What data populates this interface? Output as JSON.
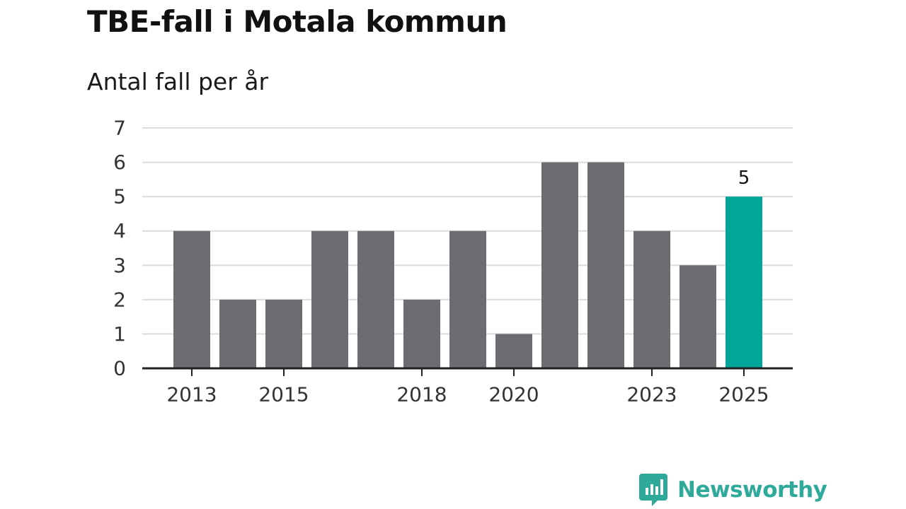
{
  "title": "TBE-fall i Motala kommun",
  "subtitle": "Antal fall per år",
  "brand": {
    "name": "Newsworthy",
    "icon": "newsworthy-logo-icon"
  },
  "colors": {
    "bar": "#6d6c72",
    "highlight": "#00a699",
    "grid": "#dcdcdc",
    "axis": "#222222",
    "text": "#333333",
    "brand": "#2ea99a"
  },
  "chart_data": {
    "type": "bar",
    "title": "TBE-fall i Motala kommun",
    "subtitle": "Antal fall per år",
    "xlabel": "",
    "ylabel": "",
    "categories": [
      "2013",
      "2014",
      "2015",
      "2016",
      "2017",
      "2018",
      "2019",
      "2020",
      "2021",
      "2022",
      "2023",
      "2024",
      "2025"
    ],
    "values": [
      4,
      2,
      2,
      4,
      4,
      2,
      4,
      1,
      6,
      6,
      4,
      3,
      5
    ],
    "ylim": [
      0,
      7
    ],
    "yticks": [
      "0",
      "1",
      "2",
      "3",
      "4",
      "5",
      "6",
      "7"
    ],
    "xtick_labels": [
      "2013",
      "2015",
      "2018",
      "2020",
      "2023",
      "2025"
    ],
    "highlight_category": "2025",
    "data_labels": [
      {
        "category": "2025",
        "text": "5"
      }
    ],
    "grid": true,
    "legend": "none"
  }
}
